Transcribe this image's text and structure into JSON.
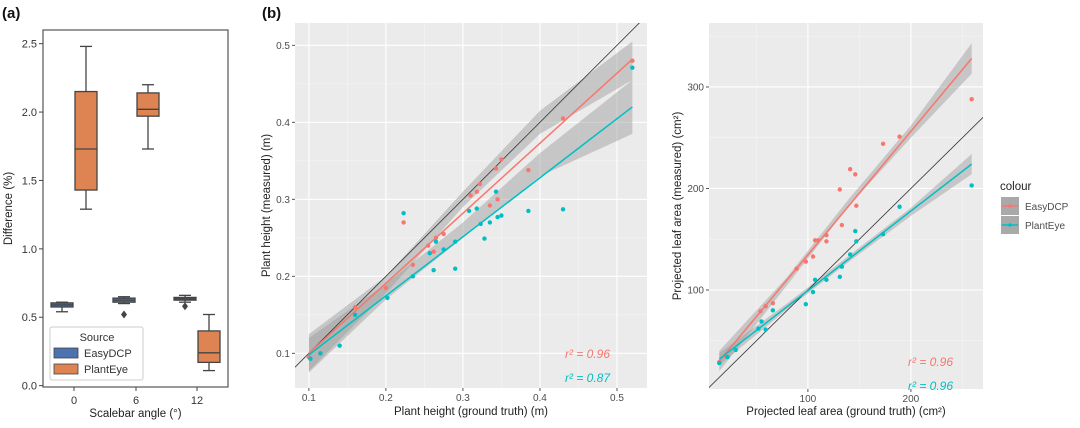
{
  "panel_labels": {
    "a": "(a)",
    "b": "(b)"
  },
  "colors": {
    "easydcp_box": "#4c72b0",
    "planteye_box": "#dd8452",
    "easydcp_line": "#f8766d",
    "planteye_line": "#00bfc4",
    "panel_bg": "#ebebeb"
  },
  "chart_data": [
    {
      "type": "box",
      "title": "",
      "xlabel": "Scalebar angle (°)",
      "ylabel": "Difference (%)",
      "ylim": [
        -0.01,
        2.6
      ],
      "yticks": [
        "0.0",
        "0.5",
        "1.0",
        "1.5",
        "2.0",
        "2.5"
      ],
      "ytick_values": [
        0,
        0.5,
        1.0,
        1.5,
        2.0,
        2.5
      ],
      "categories": [
        "0",
        "6",
        "12"
      ],
      "legend": {
        "title": "Source",
        "placement": "bottom-left",
        "entries": [
          "EasyDCP",
          "PlantEye"
        ]
      },
      "series": [
        {
          "name": "EasyDCP",
          "boxes": [
            {
              "min": 0.54,
              "q1": 0.575,
              "median": 0.59,
              "q3": 0.605,
              "max": 0.61,
              "outliers": []
            },
            {
              "min": 0.6,
              "q1": 0.61,
              "median": 0.625,
              "q3": 0.64,
              "max": 0.65,
              "outliers": [
                0.52
              ]
            },
            {
              "min": 0.61,
              "q1": 0.625,
              "median": 0.635,
              "q3": 0.645,
              "max": 0.66,
              "outliers": [
                0.58
              ]
            }
          ]
        },
        {
          "name": "PlantEye",
          "boxes": [
            {
              "min": 1.29,
              "q1": 1.43,
              "median": 1.73,
              "q3": 2.15,
              "max": 2.48,
              "outliers": []
            },
            {
              "min": 1.73,
              "q1": 1.97,
              "median": 2.02,
              "q3": 2.14,
              "max": 2.2,
              "outliers": []
            },
            {
              "min": 0.11,
              "q1": 0.17,
              "median": 0.24,
              "q3": 0.4,
              "max": 0.52,
              "outliers": []
            }
          ]
        }
      ]
    },
    {
      "type": "scatter",
      "xlabel": "Plant height (ground truth) (m)",
      "ylabel": "Plant height (measured) (m)",
      "xlim": [
        0.082,
        0.539
      ],
      "ylim": [
        0.055,
        0.529
      ],
      "xticks": [
        "0.1",
        "0.2",
        "0.3",
        "0.4",
        "0.5"
      ],
      "xtick_values": [
        0.1,
        0.2,
        0.3,
        0.4,
        0.5
      ],
      "yticks": [
        "0.1",
        "0.2",
        "0.3",
        "0.4",
        "0.5"
      ],
      "ytick_values": [
        0.1,
        0.2,
        0.3,
        0.4,
        0.5
      ],
      "identity_line": true,
      "annotations": [
        "r² = 0.96",
        "r² = 0.87"
      ],
      "series": [
        {
          "name": "EasyDCP",
          "points": [
            [
              0.1,
              0.095
            ],
            [
              0.115,
              0.1
            ],
            [
              0.16,
              0.16
            ],
            [
              0.2,
              0.185
            ],
            [
              0.223,
              0.27
            ],
            [
              0.235,
              0.215
            ],
            [
              0.255,
              0.24
            ],
            [
              0.262,
              0.232
            ],
            [
              0.265,
              0.25
            ],
            [
              0.275,
              0.255
            ],
            [
              0.31,
              0.305
            ],
            [
              0.318,
              0.31
            ],
            [
              0.322,
              0.32
            ],
            [
              0.335,
              0.292
            ],
            [
              0.343,
              0.34
            ],
            [
              0.345,
              0.3
            ],
            [
              0.35,
              0.352
            ],
            [
              0.385,
              0.338
            ],
            [
              0.43,
              0.405
            ],
            [
              0.52,
              0.48
            ]
          ],
          "fit": [
            [
              0.1,
              0.1
            ],
            [
              0.52,
              0.482
            ]
          ],
          "ci": [
            [
              0.1,
              0.077,
              0.125
            ],
            [
              0.2,
              0.178,
              0.2
            ],
            [
              0.3,
              0.29,
              0.31
            ],
            [
              0.4,
              0.385,
              0.415
            ],
            [
              0.52,
              0.455,
              0.505
            ]
          ]
        },
        {
          "name": "PlantEye",
          "points": [
            [
              0.102,
              0.093
            ],
            [
              0.115,
              0.1
            ],
            [
              0.14,
              0.11
            ],
            [
              0.16,
              0.15
            ],
            [
              0.202,
              0.172
            ],
            [
              0.223,
              0.282
            ],
            [
              0.235,
              0.2
            ],
            [
              0.257,
              0.23
            ],
            [
              0.262,
              0.208
            ],
            [
              0.265,
              0.245
            ],
            [
              0.275,
              0.235
            ],
            [
              0.29,
              0.21
            ],
            [
              0.29,
              0.245
            ],
            [
              0.308,
              0.285
            ],
            [
              0.318,
              0.288
            ],
            [
              0.323,
              0.268
            ],
            [
              0.328,
              0.249
            ],
            [
              0.335,
              0.27
            ],
            [
              0.343,
              0.31
            ],
            [
              0.345,
              0.277
            ],
            [
              0.35,
              0.279
            ],
            [
              0.385,
              0.285
            ],
            [
              0.43,
              0.287
            ],
            [
              0.52,
              0.471
            ]
          ],
          "fit": [
            [
              0.1,
              0.098
            ],
            [
              0.52,
              0.42
            ]
          ],
          "ci": [
            [
              0.1,
              0.075,
              0.12
            ],
            [
              0.2,
              0.17,
              0.19
            ],
            [
              0.3,
              0.25,
              0.27
            ],
            [
              0.4,
              0.33,
              0.36
            ],
            [
              0.52,
              0.385,
              0.455
            ]
          ]
        }
      ]
    },
    {
      "type": "scatter",
      "xlabel": "Projected leaf area (ground truth) (cm²)",
      "ylabel": "Projected leaf area (measured) (cm²)",
      "xlim": [
        4,
        270
      ],
      "ylim": [
        2.5,
        363
      ],
      "xticks": [
        "100",
        "200"
      ],
      "xtick_values": [
        100,
        200
      ],
      "yticks": [
        "100",
        "200",
        "300"
      ],
      "ytick_values": [
        100,
        200,
        300
      ],
      "identity_line": true,
      "annotations": [
        "r² = 0.96",
        "r² = 0.96"
      ],
      "legend": {
        "title": "colour",
        "placement": "right",
        "entries": [
          "EasyDCP",
          "PlantEye"
        ]
      },
      "series": [
        {
          "name": "EasyDCP",
          "points": [
            [
              14,
              29
            ],
            [
              20,
              35
            ],
            [
              54,
              79
            ],
            [
              59,
              84
            ],
            [
              66,
              87
            ],
            [
              89,
              121
            ],
            [
              98,
              128
            ],
            [
              105,
              133
            ],
            [
              107,
              149
            ],
            [
              110,
              149
            ],
            [
              118,
              148
            ],
            [
              118,
              154
            ],
            [
              131,
              199
            ],
            [
              133,
              164
            ],
            [
              141,
              219
            ],
            [
              146,
              214
            ],
            [
              147,
              183
            ],
            [
              173,
              244
            ],
            [
              189,
              251
            ],
            [
              259,
              288
            ]
          ],
          "fit": [
            [
              14,
              30
            ],
            [
              259,
              328
            ]
          ],
          "ci": [
            [
              14,
              20,
              40
            ],
            [
              80,
              105,
              113
            ],
            [
              140,
              183,
              190
            ],
            [
              200,
              250,
              262
            ],
            [
              259,
              313,
              343
            ]
          ]
        },
        {
          "name": "PlantEye",
          "points": [
            [
              14,
              28
            ],
            [
              22,
              34
            ],
            [
              30,
              41
            ],
            [
              52,
              62
            ],
            [
              55,
              69
            ],
            [
              59,
              61
            ],
            [
              66,
              80
            ],
            [
              98,
              86
            ],
            [
              105,
              98
            ],
            [
              107,
              110
            ],
            [
              118,
              110
            ],
            [
              131,
              113
            ],
            [
              133,
              123
            ],
            [
              141,
              135
            ],
            [
              146,
              158
            ],
            [
              147,
              148
            ],
            [
              173,
              155
            ],
            [
              189,
              182
            ],
            [
              259,
              203
            ]
          ],
          "fit": [
            [
              14,
              32
            ],
            [
              259,
              224
            ]
          ],
          "ci": [
            [
              14,
              26,
              38
            ],
            [
              80,
              81,
              87
            ],
            [
              140,
              128,
              134
            ],
            [
              200,
              173,
              181
            ],
            [
              259,
              214,
              234
            ]
          ]
        }
      ]
    }
  ]
}
